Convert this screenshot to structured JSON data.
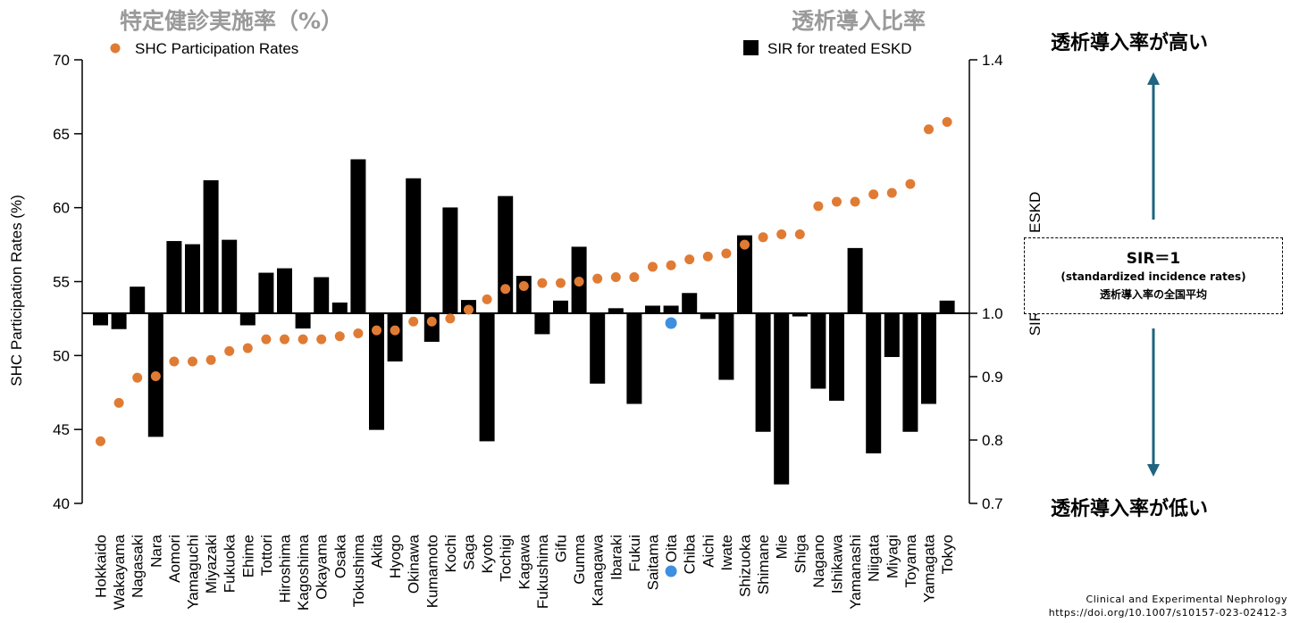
{
  "titles": {
    "left_jp": "特定健診実施率（%）",
    "right_jp": "透析導入比率"
  },
  "annotations": {
    "high": "透析導入率が高い",
    "low": "透析導入率が低い",
    "sir_main": "SIR＝1",
    "sir_sub": "(standardized incidence rates)",
    "sir_jp": "透析導入率の全国平均",
    "citation_line1": "Clinical and Experimental Nephrology",
    "citation_line2": "https://doi.org/10.1007/s10157-023-02412-3"
  },
  "colors": {
    "dot": "#e07b34",
    "bar": "#000000",
    "highlight": "#3d8fe0",
    "arrow": "#1f6480"
  },
  "chart_data": {
    "type": "bar+scatter",
    "title": "",
    "categories": [
      "Hokkaido",
      "Wakayama",
      "Nagasaki",
      "Nara",
      "Aomori",
      "Yamaguchi",
      "Miyazaki",
      "Fukuoka",
      "Ehime",
      "Tottori",
      "Hiroshima",
      "Kagoshima",
      "Okayama",
      "Osaka",
      "Tokushima",
      "Akita",
      "Hyogo",
      "Okinawa",
      "Kumamoto",
      "Kochi",
      "Saga",
      "Kyoto",
      "Tochigi",
      "Kagawa",
      "Fukushima",
      "Gifu",
      "Gunma",
      "Kanagawa",
      "Ibaraki",
      "Fukui",
      "Saitama",
      "Oita",
      "Chiba",
      "Aichi",
      "Iwate",
      "Shizuoka",
      "Shimane",
      "Mie",
      "Shiga",
      "Nagano",
      "Ishikawa",
      "Yamanashi",
      "Niigata",
      "Miyagi",
      "Toyama",
      "Yamagata",
      "Tokyo"
    ],
    "highlight_category": "Oita",
    "xlabel": "",
    "ylabel": "SHC Participation Rates (%)",
    "y2label": "SIR for treated ESKD",
    "ylim": [
      40,
      70
    ],
    "y2lim": [
      0.7,
      1.4
    ],
    "yticks": [
      "40",
      "45",
      "50",
      "55",
      "60",
      "65",
      "70"
    ],
    "y2ticks": [
      "0.7",
      "0.8",
      "0.9",
      "1.0",
      "1.4"
    ],
    "legend_left": "SHC Participation Rates",
    "legend_right": "SIR for treated ESKD",
    "series": [
      {
        "name": "SHC Participation Rates",
        "kind": "scatter",
        "axis": "left",
        "values": [
          44.2,
          46.8,
          48.5,
          48.6,
          49.6,
          49.6,
          49.7,
          50.3,
          50.5,
          51.1,
          51.1,
          51.1,
          51.1,
          51.3,
          51.5,
          51.7,
          51.7,
          52.3,
          52.3,
          52.5,
          53.1,
          53.8,
          54.5,
          54.7,
          54.9,
          54.9,
          55.0,
          55.2,
          55.3,
          55.3,
          56.0,
          56.1,
          56.5,
          56.7,
          56.9,
          57.5,
          58.0,
          58.2,
          58.2,
          60.1,
          60.4,
          60.4,
          60.9,
          61.0,
          61.6,
          65.3,
          65.8
        ]
      },
      {
        "name": "SIR for treated ESKD",
        "kind": "bar",
        "axis": "right",
        "values": [
          0.981,
          0.975,
          1.042,
          0.805,
          1.114,
          1.109,
          1.21,
          1.116,
          0.981,
          1.064,
          1.071,
          0.976,
          1.057,
          1.017,
          1.243,
          0.816,
          0.924,
          1.213,
          0.955,
          1.167,
          1.021,
          0.798,
          1.185,
          1.059,
          0.967,
          1.02,
          1.105,
          0.889,
          1.008,
          0.857,
          1.012,
          1.012,
          1.032,
          0.991,
          0.895,
          1.123,
          0.813,
          0.73,
          0.995,
          0.881,
          0.862,
          1.103,
          0.779,
          0.931,
          0.813,
          0.857,
          1.02
        ]
      }
    ],
    "grid": false,
    "legend_position": "top"
  }
}
